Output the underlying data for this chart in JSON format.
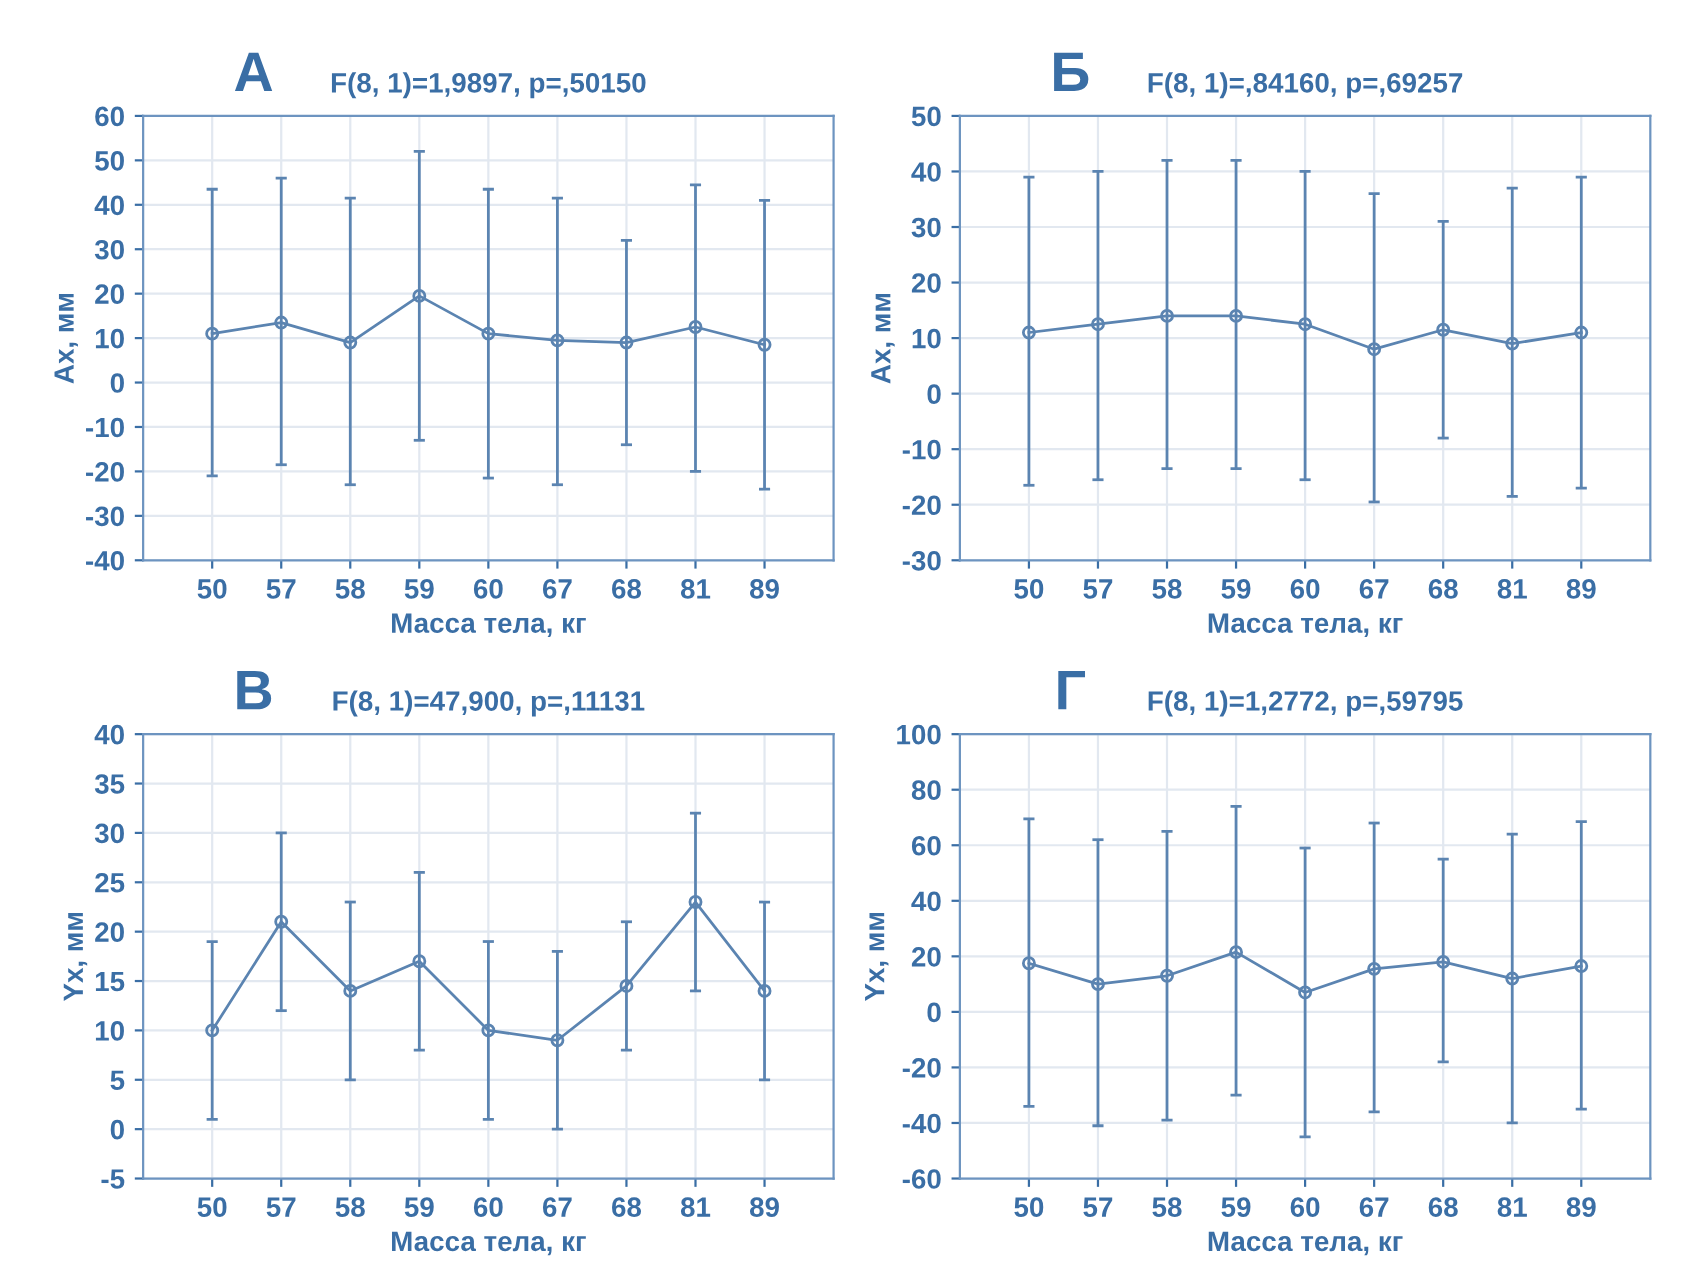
{
  "chart_data": [
    {
      "type": "line",
      "title": "А",
      "subtitle": "F(8, 1)=1,9897, p=,50150",
      "xlabel": "Масса тела, кг",
      "ylabel": "Ax, мм",
      "categories": [
        "50",
        "57",
        "58",
        "59",
        "60",
        "67",
        "68",
        "81",
        "89"
      ],
      "ylim": [
        -40,
        60
      ],
      "yticks": [
        -40,
        -30,
        -20,
        -10,
        0,
        10,
        20,
        30,
        40,
        50,
        60
      ],
      "grid": true,
      "marker": "circle",
      "series": [
        {
          "color": "#5b84b1",
          "values": [
            11,
            13.5,
            9,
            19.5,
            11,
            9.5,
            9,
            12.5,
            8.5
          ],
          "errors": [
            [
              -21,
              43.5
            ],
            [
              -18.5,
              46
            ],
            [
              -23,
              41.5
            ],
            [
              -13,
              52
            ],
            [
              -21.5,
              43.5
            ],
            [
              -23,
              41.5
            ],
            [
              -14,
              32
            ],
            [
              -20,
              44.5
            ],
            [
              -24,
              41
            ]
          ]
        }
      ]
    },
    {
      "type": "line",
      "title": "Б",
      "subtitle": "F(8, 1)=,84160, p=,69257",
      "xlabel": "Масса тела, кг",
      "ylabel": "Ax, мм",
      "categories": [
        "50",
        "57",
        "58",
        "59",
        "60",
        "67",
        "68",
        "81",
        "89"
      ],
      "ylim": [
        -30,
        50
      ],
      "yticks": [
        -30,
        -20,
        -10,
        0,
        10,
        20,
        30,
        40,
        50
      ],
      "grid": true,
      "marker": "circle",
      "series": [
        {
          "color": "#5b84b1",
          "values": [
            11,
            12.5,
            14,
            14,
            12.5,
            8,
            11.5,
            9,
            11
          ],
          "errors": [
            [
              -16.5,
              39
            ],
            [
              -15.5,
              40
            ],
            [
              -13.5,
              42
            ],
            [
              -13.5,
              42
            ],
            [
              -15.5,
              40
            ],
            [
              -19.5,
              36
            ],
            [
              -8,
              31
            ],
            [
              -18.5,
              37
            ],
            [
              -17,
              39
            ]
          ]
        }
      ]
    },
    {
      "type": "line",
      "title": "В",
      "subtitle": "F(8, 1)=47,900, p=,11131",
      "xlabel": "Масса тела, кг",
      "ylabel": "Yx, мм",
      "categories": [
        "50",
        "57",
        "58",
        "59",
        "60",
        "67",
        "68",
        "81",
        "89"
      ],
      "ylim": [
        -5,
        40
      ],
      "yticks": [
        -5,
        0,
        5,
        10,
        15,
        20,
        25,
        30,
        35,
        40
      ],
      "grid": true,
      "marker": "circle",
      "series": [
        {
          "color": "#5b84b1",
          "values": [
            10,
            21,
            14,
            17,
            10,
            9,
            14.5,
            23,
            14
          ],
          "errors": [
            [
              1,
              19
            ],
            [
              12,
              30
            ],
            [
              5,
              23
            ],
            [
              8,
              26
            ],
            [
              1,
              19
            ],
            [
              0,
              18
            ],
            [
              8,
              21
            ],
            [
              14,
              32
            ],
            [
              5,
              23
            ]
          ]
        }
      ]
    },
    {
      "type": "line",
      "title": "Г",
      "subtitle": "F(8, 1)=1,2772, p=,59795",
      "xlabel": "Масса тела, кг",
      "ylabel": "Yx, мм",
      "categories": [
        "50",
        "57",
        "58",
        "59",
        "60",
        "67",
        "68",
        "81",
        "89"
      ],
      "ylim": [
        -60,
        100
      ],
      "yticks": [
        -60,
        -40,
        -20,
        0,
        20,
        40,
        60,
        80,
        100
      ],
      "grid": true,
      "marker": "circle",
      "series": [
        {
          "color": "#5b84b1",
          "values": [
            17.5,
            10,
            13,
            21.5,
            7,
            15.5,
            18,
            12,
            16.5
          ],
          "errors": [
            [
              -34,
              69.5
            ],
            [
              -41,
              62
            ],
            [
              -39,
              65
            ],
            [
              -30,
              74
            ],
            [
              -45,
              59
            ],
            [
              -36,
              68
            ],
            [
              -18,
              55
            ],
            [
              -40,
              64
            ],
            [
              -35,
              68.5
            ]
          ]
        }
      ]
    }
  ]
}
